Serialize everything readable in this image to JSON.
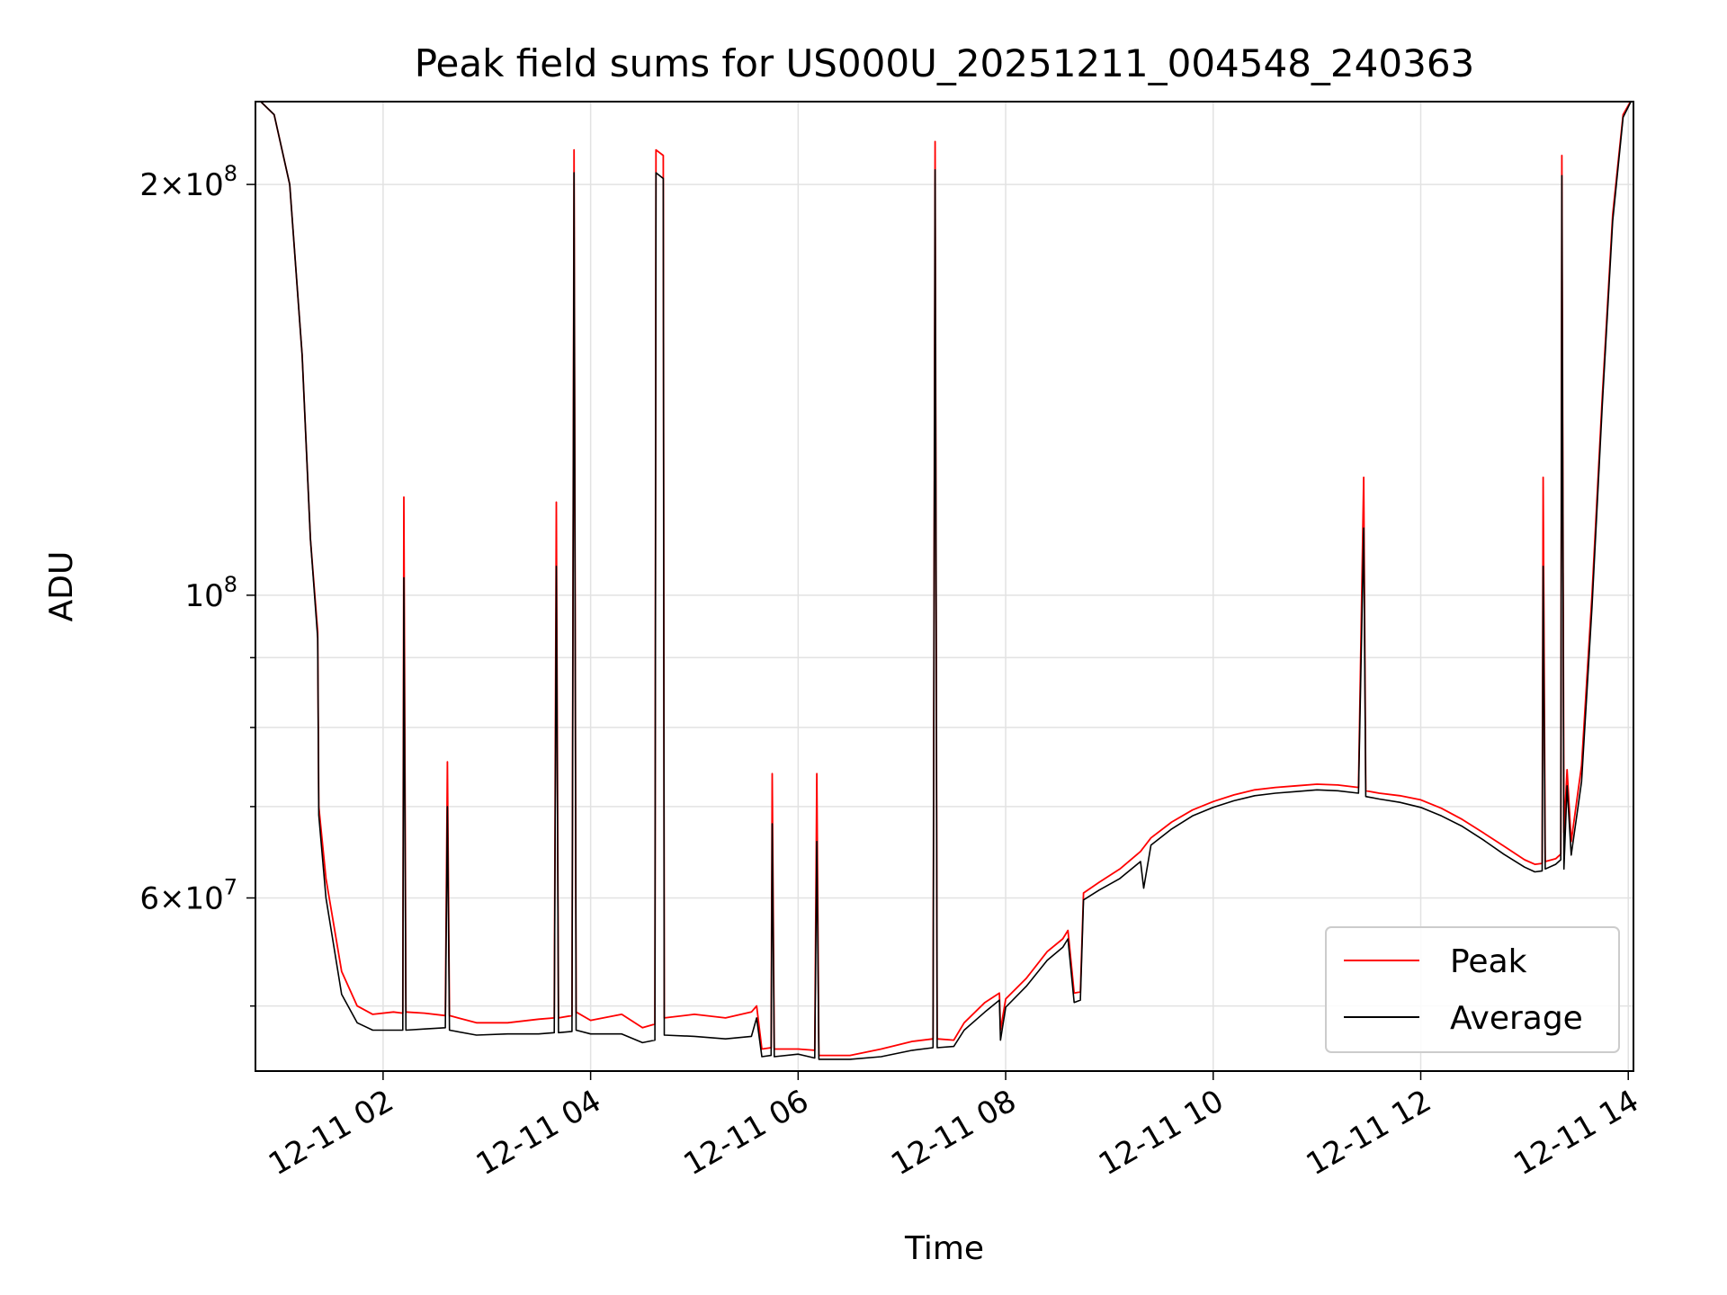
{
  "chart_data": {
    "type": "line",
    "title": "Peak field sums for US000U_20251211_004548_240363",
    "xlabel": "Time",
    "ylabel": "ADU",
    "yscale": "log",
    "xlim": [
      0.77,
      14.05
    ],
    "ylim": [
      44800000,
      230000000
    ],
    "grid": true,
    "legend_position": "lower-right",
    "x_ticks": [
      {
        "value": 2,
        "label": "12-11 02"
      },
      {
        "value": 4,
        "label": "12-11 04"
      },
      {
        "value": 6,
        "label": "12-11 06"
      },
      {
        "value": 8,
        "label": "12-11 08"
      },
      {
        "value": 10,
        "label": "12-11 10"
      },
      {
        "value": 12,
        "label": "12-11 12"
      },
      {
        "value": 14,
        "label": "12-11 14"
      }
    ],
    "y_major_ticks": [
      {
        "value": 60000000,
        "mantissa": "6",
        "exponent": "7"
      },
      {
        "value": 100000000,
        "mantissa": "",
        "exponent": "8"
      },
      {
        "value": 200000000,
        "mantissa": "2",
        "exponent": "8"
      }
    ],
    "y_minor_ticks": [
      50000000,
      70000000,
      80000000,
      90000000,
      300000000
    ],
    "times_bar": "×",
    "base_label": "10",
    "series": [
      {
        "name": "Peak",
        "color": "#ff0000",
        "points": [
          [
            0.77,
            232000000
          ],
          [
            0.95,
            225000000
          ],
          [
            1.1,
            200000000
          ],
          [
            1.22,
            150000000
          ],
          [
            1.3,
            110000000
          ],
          [
            1.37,
            94000000
          ],
          [
            1.38,
            70000000
          ],
          [
            1.45,
            62000000
          ],
          [
            1.6,
            53000000
          ],
          [
            1.75,
            50000000
          ],
          [
            1.9,
            49300000
          ],
          [
            2.1,
            49500000
          ],
          [
            2.19,
            49400000
          ],
          [
            2.2,
            118000000
          ],
          [
            2.22,
            49500000
          ],
          [
            2.4,
            49400000
          ],
          [
            2.6,
            49200000
          ],
          [
            2.62,
            75500000
          ],
          [
            2.64,
            49200000
          ],
          [
            2.9,
            48600000
          ],
          [
            3.2,
            48600000
          ],
          [
            3.5,
            48900000
          ],
          [
            3.65,
            49000000
          ],
          [
            3.67,
            117000000
          ],
          [
            3.69,
            49000000
          ],
          [
            3.82,
            49200000
          ],
          [
            3.84,
            212000000
          ],
          [
            3.86,
            49500000
          ],
          [
            4.0,
            48800000
          ],
          [
            4.3,
            49300000
          ],
          [
            4.5,
            48200000
          ],
          [
            4.62,
            48500000
          ],
          [
            4.63,
            212000000
          ],
          [
            4.7,
            210000000
          ],
          [
            4.71,
            49000000
          ],
          [
            5.0,
            49300000
          ],
          [
            5.3,
            49000000
          ],
          [
            5.55,
            49500000
          ],
          [
            5.6,
            50000000
          ],
          [
            5.65,
            46500000
          ],
          [
            5.74,
            46600000
          ],
          [
            5.75,
            74000000
          ],
          [
            5.77,
            46500000
          ],
          [
            6.0,
            46500000
          ],
          [
            6.16,
            46400000
          ],
          [
            6.18,
            74000000
          ],
          [
            6.2,
            46000000
          ],
          [
            6.5,
            46000000
          ],
          [
            6.8,
            46500000
          ],
          [
            7.1,
            47100000
          ],
          [
            7.3,
            47300000
          ],
          [
            7.32,
            215000000
          ],
          [
            7.34,
            47300000
          ],
          [
            7.5,
            47200000
          ],
          [
            7.6,
            48600000
          ],
          [
            7.8,
            50300000
          ],
          [
            7.94,
            51100000
          ],
          [
            7.95,
            48000000
          ],
          [
            8.0,
            50600000
          ],
          [
            8.2,
            52400000
          ],
          [
            8.4,
            54800000
          ],
          [
            8.55,
            56000000
          ],
          [
            8.6,
            56800000
          ],
          [
            8.66,
            51100000
          ],
          [
            8.72,
            51200000
          ],
          [
            8.75,
            60500000
          ],
          [
            8.9,
            61600000
          ],
          [
            9.1,
            63000000
          ],
          [
            9.3,
            64900000
          ],
          [
            9.4,
            66400000
          ],
          [
            9.6,
            68200000
          ],
          [
            9.8,
            69600000
          ],
          [
            10.0,
            70600000
          ],
          [
            10.2,
            71400000
          ],
          [
            10.4,
            72000000
          ],
          [
            10.6,
            72300000
          ],
          [
            10.8,
            72500000
          ],
          [
            11.0,
            72700000
          ],
          [
            11.2,
            72600000
          ],
          [
            11.4,
            72300000
          ],
          [
            11.45,
            122000000
          ],
          [
            11.47,
            71900000
          ],
          [
            11.6,
            71600000
          ],
          [
            11.8,
            71300000
          ],
          [
            12.0,
            70800000
          ],
          [
            12.2,
            69800000
          ],
          [
            12.4,
            68500000
          ],
          [
            12.6,
            67000000
          ],
          [
            12.8,
            65500000
          ],
          [
            13.0,
            64000000
          ],
          [
            13.1,
            63500000
          ],
          [
            13.17,
            63600000
          ],
          [
            13.18,
            122000000
          ],
          [
            13.2,
            63800000
          ],
          [
            13.3,
            64100000
          ],
          [
            13.35,
            64600000
          ],
          [
            13.36,
            210000000
          ],
          [
            13.38,
            67000000
          ],
          [
            13.41,
            74500000
          ],
          [
            13.45,
            66000000
          ],
          [
            13.55,
            75000000
          ],
          [
            13.65,
            100000000
          ],
          [
            13.75,
            140000000
          ],
          [
            13.85,
            190000000
          ],
          [
            13.95,
            225000000
          ],
          [
            14.05,
            232000000
          ]
        ]
      },
      {
        "name": "Average",
        "color": "#000000",
        "points": [
          [
            0.77,
            232000000
          ],
          [
            0.95,
            225000000
          ],
          [
            1.1,
            200000000
          ],
          [
            1.22,
            150000000
          ],
          [
            1.3,
            110000000
          ],
          [
            1.37,
            93000000
          ],
          [
            1.38,
            69000000
          ],
          [
            1.45,
            60000000
          ],
          [
            1.6,
            51000000
          ],
          [
            1.75,
            48600000
          ],
          [
            1.9,
            48000000
          ],
          [
            2.1,
            48000000
          ],
          [
            2.19,
            48000000
          ],
          [
            2.2,
            103000000
          ],
          [
            2.22,
            48000000
          ],
          [
            2.4,
            48100000
          ],
          [
            2.6,
            48200000
          ],
          [
            2.62,
            70000000
          ],
          [
            2.64,
            48000000
          ],
          [
            2.9,
            47600000
          ],
          [
            3.2,
            47700000
          ],
          [
            3.5,
            47700000
          ],
          [
            3.65,
            47800000
          ],
          [
            3.67,
            105000000
          ],
          [
            3.69,
            47800000
          ],
          [
            3.82,
            47900000
          ],
          [
            3.84,
            204000000
          ],
          [
            3.86,
            48000000
          ],
          [
            4.0,
            47700000
          ],
          [
            4.3,
            47700000
          ],
          [
            4.5,
            47000000
          ],
          [
            4.62,
            47200000
          ],
          [
            4.63,
            204000000
          ],
          [
            4.7,
            202000000
          ],
          [
            4.71,
            47600000
          ],
          [
            5.0,
            47500000
          ],
          [
            5.3,
            47300000
          ],
          [
            5.55,
            47500000
          ],
          [
            5.6,
            49000000
          ],
          [
            5.65,
            45900000
          ],
          [
            5.74,
            46000000
          ],
          [
            5.75,
            68000000
          ],
          [
            5.77,
            45900000
          ],
          [
            6.0,
            46100000
          ],
          [
            6.16,
            45800000
          ],
          [
            6.18,
            66000000
          ],
          [
            6.2,
            45700000
          ],
          [
            6.5,
            45700000
          ],
          [
            6.8,
            45900000
          ],
          [
            7.1,
            46400000
          ],
          [
            7.3,
            46600000
          ],
          [
            7.32,
            205000000
          ],
          [
            7.34,
            46600000
          ],
          [
            7.5,
            46700000
          ],
          [
            7.6,
            48000000
          ],
          [
            7.8,
            49500000
          ],
          [
            7.94,
            50500000
          ],
          [
            7.95,
            47200000
          ],
          [
            8.0,
            49900000
          ],
          [
            8.2,
            51700000
          ],
          [
            8.4,
            54000000
          ],
          [
            8.55,
            55200000
          ],
          [
            8.6,
            56000000
          ],
          [
            8.66,
            50300000
          ],
          [
            8.72,
            50500000
          ],
          [
            8.75,
            59800000
          ],
          [
            8.9,
            60800000
          ],
          [
            9.1,
            62000000
          ],
          [
            9.3,
            63800000
          ],
          [
            9.33,
            61000000
          ],
          [
            9.4,
            65600000
          ],
          [
            9.6,
            67400000
          ],
          [
            9.8,
            68900000
          ],
          [
            10.0,
            69900000
          ],
          [
            10.2,
            70700000
          ],
          [
            10.4,
            71300000
          ],
          [
            10.6,
            71600000
          ],
          [
            10.8,
            71800000
          ],
          [
            11.0,
            72000000
          ],
          [
            11.2,
            71900000
          ],
          [
            11.4,
            71600000
          ],
          [
            11.45,
            112000000
          ],
          [
            11.47,
            71200000
          ],
          [
            11.6,
            70900000
          ],
          [
            11.8,
            70500000
          ],
          [
            12.0,
            69900000
          ],
          [
            12.2,
            68900000
          ],
          [
            12.4,
            67700000
          ],
          [
            12.6,
            66200000
          ],
          [
            12.8,
            64600000
          ],
          [
            13.0,
            63200000
          ],
          [
            13.1,
            62700000
          ],
          [
            13.17,
            62800000
          ],
          [
            13.18,
            105000000
          ],
          [
            13.2,
            63000000
          ],
          [
            13.3,
            63500000
          ],
          [
            13.35,
            64000000
          ],
          [
            13.36,
            203000000
          ],
          [
            13.38,
            63000000
          ],
          [
            13.41,
            72500000
          ],
          [
            13.45,
            64500000
          ],
          [
            13.55,
            73000000
          ],
          [
            13.65,
            98000000
          ],
          [
            13.75,
            138000000
          ],
          [
            13.85,
            188000000
          ],
          [
            13.95,
            224000000
          ],
          [
            14.05,
            232000000
          ]
        ]
      }
    ]
  }
}
